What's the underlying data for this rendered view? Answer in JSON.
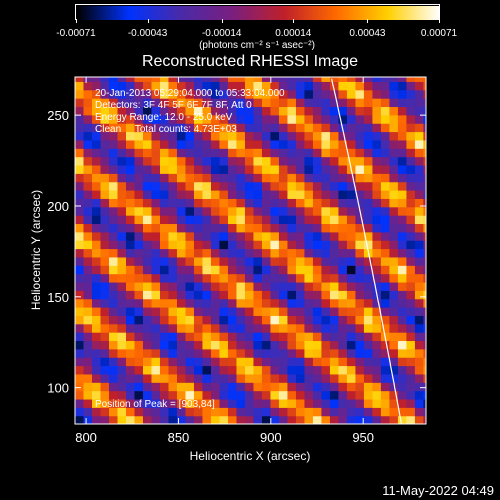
{
  "colorbar": {
    "ticks": [
      "-0.00071",
      "-0.00043",
      "-0.00014",
      "0.00014",
      "0.00043",
      "0.00071"
    ],
    "unit": "(photons cm⁻² s⁻¹ asec⁻²)",
    "min": -0.00071,
    "max": 0.00071,
    "colormap": [
      "#000000",
      "#0033ff",
      "#4a2aa8",
      "#7a1f7f",
      "#c0202a",
      "#ff6a00",
      "#ffd000",
      "#ffffff"
    ]
  },
  "chart_data": {
    "type": "heatmap",
    "title": "Reconstructed RHESSI Image",
    "xlabel": "Heliocentric X (arcsec)",
    "ylabel": "Heliocentric Y (arcsec)",
    "xlim": [
      794,
      984
    ],
    "ylim": [
      80,
      271
    ],
    "xticks": [
      800,
      850,
      900,
      950
    ],
    "yticks": [
      100,
      150,
      200,
      250
    ],
    "pattern": "diagonal alternating bright and dark stripes (back-projection fringes)",
    "annotations": [
      "20-Jan-2013 05:29:04.000 to 05:33:04.000",
      "Detectors: 3F 4F 5F 6F 7F 8F, Att 0",
      "Energy Range: 12.0 - 25.0 keV",
      "Clean     Total counts: 4.73E+03"
    ],
    "peak_label": "Position of Peak = [903,84]",
    "peak_position": [
      903,
      84
    ],
    "limb_curve": true
  },
  "footer": {
    "date": "11-May-2022 04:49"
  }
}
